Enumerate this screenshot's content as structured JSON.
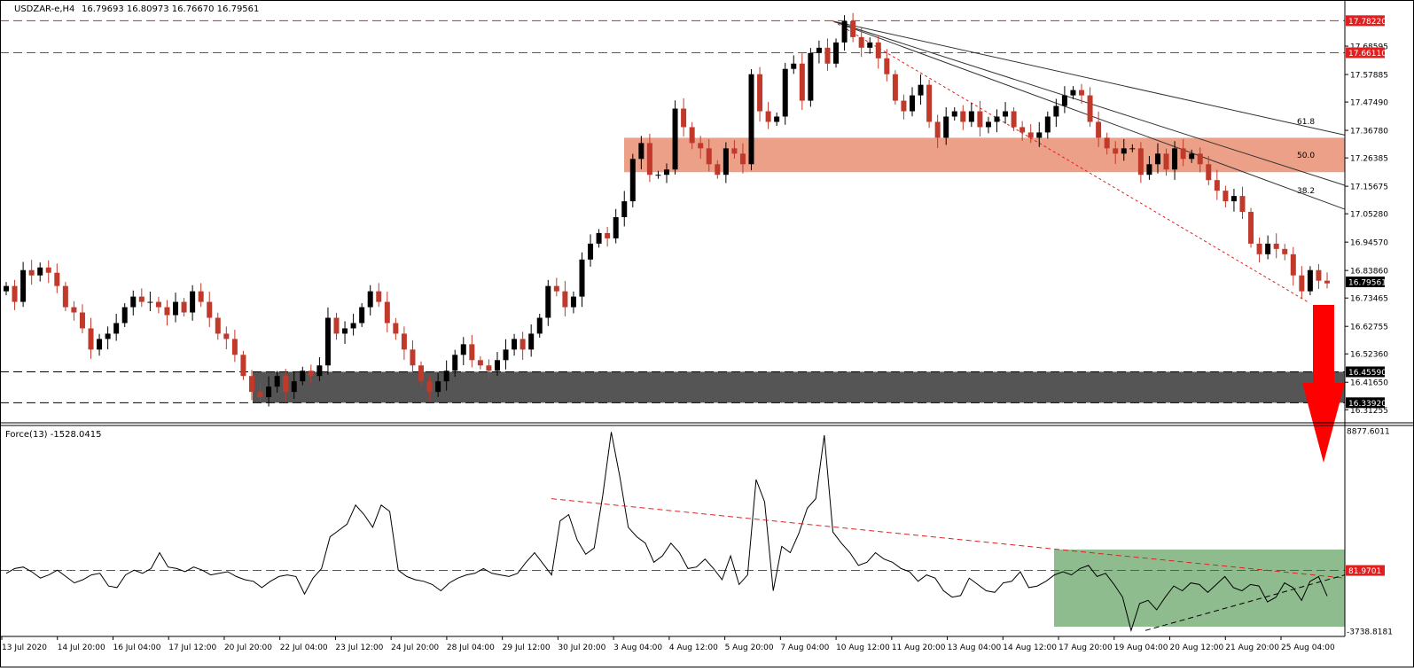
{
  "chart_header": {
    "symbol_text": "USDZAR-e,H4",
    "ohlc_text": "16.79693 16.80973 16.76670 16.79561"
  },
  "force_header": {
    "label_text": "Force(13) -1528.0415"
  },
  "colors": {
    "bull_candle": "#000000",
    "bear_candle": "#c0392b",
    "resistance_zone": "#e9967a",
    "support_zone": "#555555",
    "oscillator_zone": "#8fbc8f",
    "level_line": "#e02020",
    "price_tag": "#e02020",
    "arrow": "#ff0000"
  },
  "chart_data": [
    {
      "type": "candlestick",
      "symbol": "USDZAR-e",
      "timeframe": "H4",
      "last_ohlc": {
        "open": 16.79693,
        "high": 16.80973,
        "low": 16.7667,
        "close": 16.79561
      },
      "ylim": [
        16.28,
        17.8
      ],
      "y_ticks": [
        "17.68595",
        "17.57885",
        "17.47490",
        "17.36780",
        "17.26385",
        "17.15675",
        "17.05280",
        "16.94570",
        "16.83860",
        "16.73465",
        "16.62755",
        "16.52360",
        "16.41650",
        "16.31255"
      ],
      "x_ticks": [
        "13 Jul 2020",
        "14 Jul 20:00",
        "16 Jul 04:00",
        "17 Jul 12:00",
        "20 Jul 20:00",
        "22 Jul 04:00",
        "23 Jul 12:00",
        "24 Jul 20:00",
        "28 Jul 04:00",
        "29 Jul 12:00",
        "30 Jul 20:00",
        "3 Aug 04:00",
        "4 Aug 12:00",
        "5 Aug 20:00",
        "7 Aug 04:00",
        "10 Aug 12:00",
        "11 Aug 20:00",
        "13 Aug 04:00",
        "14 Aug 12:00",
        "17 Aug 20:00",
        "19 Aug 04:00",
        "20 Aug 12:00",
        "21 Aug 20:00",
        "25 Aug 04:00"
      ],
      "price_levels": [
        {
          "value": 17.7822,
          "label": "17.78220"
        },
        {
          "value": 17.6611,
          "label": "17.66110"
        },
        {
          "value": 16.4559,
          "label": "16.45590"
        },
        {
          "value": 16.3392,
          "label": "16.33920"
        },
        {
          "value": 16.79561,
          "label": "16.79561"
        }
      ],
      "resistance_zone": [
        17.21,
        17.34
      ],
      "support_zone": [
        16.339,
        16.456
      ],
      "fibonacci_fan": {
        "levels": [
          "61.8",
          "50.0",
          "38.2"
        ]
      },
      "closes": [
        16.78,
        16.72,
        16.84,
        16.82,
        16.85,
        16.83,
        16.78,
        16.7,
        16.68,
        16.62,
        16.54,
        16.58,
        16.6,
        16.64,
        16.7,
        16.74,
        16.72,
        16.72,
        16.7,
        16.67,
        16.72,
        16.68,
        16.76,
        16.72,
        16.66,
        16.6,
        16.58,
        16.52,
        16.44,
        16.38,
        16.36,
        16.4,
        16.44,
        16.38,
        16.42,
        16.46,
        16.44,
        16.48,
        16.66,
        16.6,
        16.62,
        16.64,
        16.7,
        16.76,
        16.72,
        16.64,
        16.6,
        16.54,
        16.48,
        16.42,
        16.38,
        16.42,
        16.46,
        16.52,
        16.56,
        16.5,
        16.48,
        16.46,
        16.5,
        16.54,
        16.58,
        16.54,
        16.6,
        16.66,
        16.78,
        16.76,
        16.7,
        16.74,
        16.88,
        16.94,
        16.98,
        16.96,
        17.04,
        17.1,
        17.26,
        17.32,
        17.2,
        17.2,
        17.22,
        17.45,
        17.38,
        17.32,
        17.3,
        17.24,
        17.2,
        17.3,
        17.28,
        17.24,
        17.58,
        17.44,
        17.4,
        17.42,
        17.6,
        17.62,
        17.48,
        17.66,
        17.68,
        17.62,
        17.7,
        17.78,
        17.72,
        17.68,
        17.7,
        17.64,
        17.58,
        17.48,
        17.44,
        17.5,
        17.54,
        17.4,
        17.34,
        17.42,
        17.44,
        17.4,
        17.44,
        17.38,
        17.4,
        17.42,
        17.44,
        17.38,
        17.36,
        17.34,
        17.36,
        17.42,
        17.46,
        17.5,
        17.52,
        17.5,
        17.4,
        17.34,
        17.3,
        17.28,
        17.3,
        17.3,
        17.2,
        17.24,
        17.28,
        17.22,
        17.3,
        17.26,
        17.28,
        17.24,
        17.18,
        17.14,
        17.1,
        17.12,
        17.06,
        16.94,
        16.9,
        16.94,
        16.92,
        16.9,
        16.82,
        16.76,
        16.84,
        16.8,
        16.79
      ],
      "force_index": {
        "label": "Force(13)",
        "last_value": -1528.0415,
        "ylim": [
          -3738.8181,
          8877.6011
        ],
        "y_ticks": [
          "8877.6011",
          "81.9701",
          "-3738.8181"
        ],
        "reference_level": 81.9701,
        "values": [
          -100,
          200,
          300,
          0,
          -400,
          -200,
          100,
          -300,
          -700,
          -500,
          -200,
          -100,
          -900,
          -1000,
          -200,
          100,
          -100,
          200,
          1200,
          300,
          200,
          0,
          300,
          100,
          -200,
          -100,
          0,
          -300,
          -500,
          -600,
          -1000,
          -600,
          -300,
          -200,
          -300,
          -1400,
          -400,
          200,
          2200,
          2600,
          3000,
          4200,
          3600,
          2800,
          4200,
          3800,
          100,
          -300,
          -500,
          -600,
          -800,
          -1200,
          -700,
          -400,
          -200,
          -100,
          200,
          -100,
          -200,
          -300,
          -100,
          600,
          1200,
          500,
          -200,
          3200,
          3600,
          2000,
          1100,
          1500,
          4800,
          8800,
          6000,
          2800,
          2200,
          1800,
          600,
          1000,
          1800,
          1200,
          200,
          300,
          800,
          200,
          -500,
          1000,
          -800,
          -200,
          5800,
          4400,
          -1200,
          1600,
          1200,
          2400,
          4000,
          4600,
          8600,
          2500,
          1800,
          1200,
          400,
          600,
          1200,
          800,
          600,
          200,
          0,
          -600,
          -200,
          -400,
          -1200,
          -1600,
          -1500,
          -400,
          -800,
          -1200,
          -1300,
          -700,
          -600,
          0,
          -1000,
          -900,
          -600,
          -200,
          0,
          -200,
          200,
          400,
          -300,
          -100,
          -800,
          -1600,
          -3700,
          -2000,
          -1800,
          -2400,
          -1600,
          -900,
          -1200,
          -700,
          -800,
          -1300,
          -800,
          -300,
          -1000,
          -1200,
          -800,
          -900,
          -1900,
          -1600,
          -700,
          -1000,
          -1800,
          -600,
          -300,
          -1528
        ]
      }
    }
  ]
}
